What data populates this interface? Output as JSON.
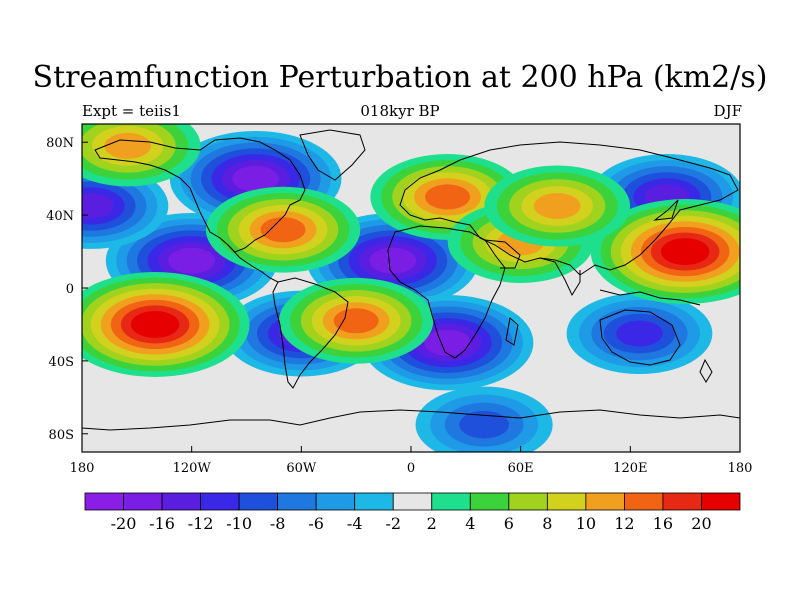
{
  "title": "Streamfunction Perturbation at 200 hPa (km2/s)",
  "subtitle_left": "Expt = teiis1",
  "subtitle_center": "018kyr BP",
  "subtitle_right": "DJF",
  "lat_ticks": [
    "80N",
    "40N",
    "0",
    "40S",
    "80S"
  ],
  "lon_ticks": [
    "180",
    "120W",
    "60W",
    "0",
    "60E",
    "120E",
    "180"
  ],
  "colorbar": {
    "labels": [
      "-20",
      "-16",
      "-12",
      "-10",
      "-8",
      "-6",
      "-4",
      "-2",
      "2",
      "4",
      "6",
      "8",
      "10",
      "12",
      "16",
      "20"
    ],
    "colors": [
      "#8a1ee6",
      "#7a1ee6",
      "#5a1ee0",
      "#3a28e6",
      "#1e50dc",
      "#1e78e0",
      "#1e9ae6",
      "#1eb8e6",
      "#e6e6e6",
      "#1ee08c",
      "#3cd23c",
      "#a0d21e",
      "#d2d21e",
      "#f0a01e",
      "#f06414",
      "#e62814",
      "#e60000"
    ]
  },
  "chart_data": {
    "type": "contour-map",
    "title": "Streamfunction Perturbation at 200 hPa (km2/s)",
    "x_range": [
      -180,
      180
    ],
    "y_range": [
      -90,
      90
    ],
    "levels": [
      -20,
      -16,
      -12,
      -10,
      -8,
      -6,
      -4,
      -2,
      2,
      4,
      6,
      8,
      10,
      12,
      16,
      20
    ],
    "features": [
      {
        "kind": "low",
        "lon": -85,
        "lat": 60,
        "value": -16
      },
      {
        "kind": "low",
        "lon": -120,
        "lat": 15,
        "value": -16
      },
      {
        "kind": "low",
        "lon": -10,
        "lat": 15,
        "value": -16
      },
      {
        "kind": "low",
        "lon": -60,
        "lat": -25,
        "value": -12
      },
      {
        "kind": "low",
        "lon": 20,
        "lat": -30,
        "value": -16
      },
      {
        "kind": "low",
        "lon": 125,
        "lat": -25,
        "value": -10
      },
      {
        "kind": "low",
        "lon": 140,
        "lat": 50,
        "value": -12
      },
      {
        "kind": "low",
        "lon": -175,
        "lat": 45,
        "value": -12
      },
      {
        "kind": "low",
        "lon": 40,
        "lat": -75,
        "value": -8
      },
      {
        "kind": "high",
        "lon": 150,
        "lat": 20,
        "value": 20
      },
      {
        "kind": "high",
        "lon": -140,
        "lat": -20,
        "value": 20
      },
      {
        "kind": "high",
        "lon": 20,
        "lat": 50,
        "value": 12
      },
      {
        "kind": "high",
        "lon": -70,
        "lat": 32,
        "value": 12
      },
      {
        "kind": "high",
        "lon": -30,
        "lat": -18,
        "value": 12
      },
      {
        "kind": "high",
        "lon": -155,
        "lat": 78,
        "value": 10
      },
      {
        "kind": "high",
        "lon": 60,
        "lat": 25,
        "value": 10
      },
      {
        "kind": "high",
        "lon": 80,
        "lat": 45,
        "value": 10
      }
    ]
  }
}
